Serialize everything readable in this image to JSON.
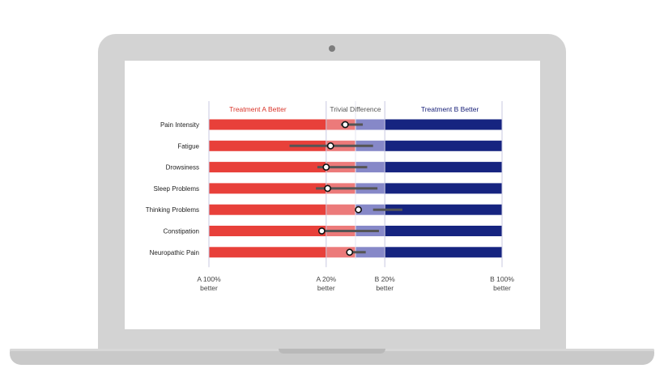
{
  "chart_data": {
    "type": "forest-bar",
    "zones": [
      {
        "label": "Treatment A Better",
        "color": "#d9352a"
      },
      {
        "label": "Trivial Difference",
        "color": "#555555"
      },
      {
        "label": "Treatment B Better",
        "color": "#1b237a"
      }
    ],
    "x_ticks": [
      {
        "value": -100,
        "label": [
          "A 100%",
          "better"
        ]
      },
      {
        "value": -20,
        "label": [
          "A 20%",
          "better"
        ]
      },
      {
        "value": 20,
        "label": [
          "B 20%",
          "better"
        ]
      },
      {
        "value": 100,
        "label": [
          "B 100%",
          "better"
        ]
      }
    ],
    "xlim": [
      -100,
      100
    ],
    "trivial_zone": [
      -20,
      20
    ],
    "colors": {
      "a_strong": "#e8403a",
      "a_light": "#ec7a7a",
      "b_light": "#8688c8",
      "b_strong": "#162480",
      "ci_line": "#555555",
      "zone_divider": "#c9c9e0"
    },
    "rows": [
      {
        "label": "Pain Intensity",
        "estimate": -7,
        "ci": [
          -10,
          5
        ]
      },
      {
        "label": "Fatigue",
        "estimate": -17,
        "ci": [
          -45,
          12
        ]
      },
      {
        "label": "Drowsiness",
        "estimate": -20,
        "ci": [
          -26,
          8
        ]
      },
      {
        "label": "Sleep Problems",
        "estimate": -19,
        "ci": [
          -27,
          15
        ]
      },
      {
        "label": "Thinking Problems",
        "estimate": 2,
        "ci": [
          12,
          32
        ]
      },
      {
        "label": "Constipation",
        "estimate": -23,
        "ci": [
          -22,
          16
        ]
      },
      {
        "label": "Neuropathic Pain",
        "estimate": -4,
        "ci": [
          -3,
          7
        ]
      }
    ]
  }
}
